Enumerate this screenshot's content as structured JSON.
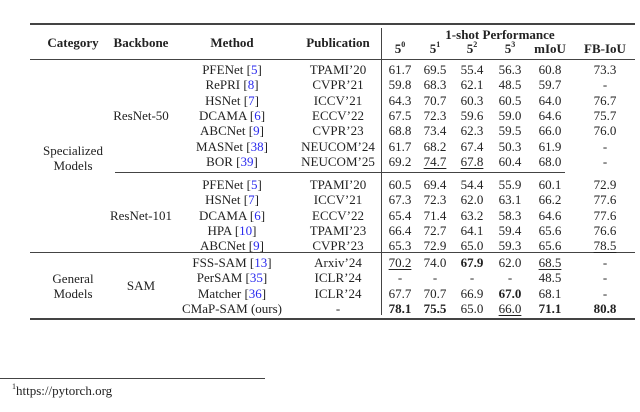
{
  "header": {
    "category": "Category",
    "backbone": "Backbone",
    "method": "Method",
    "publication": "Publication",
    "group": "1-shot Performance",
    "folds": [
      {
        "base": "5",
        "sup": "0"
      },
      {
        "base": "5",
        "sup": "1"
      },
      {
        "base": "5",
        "sup": "2"
      },
      {
        "base": "5",
        "sup": "3"
      }
    ],
    "miou": "mIoU",
    "fbiou": "FB-IoU"
  },
  "groups": [
    {
      "category": "Specialized Models",
      "backbones": [
        {
          "name": "ResNet-50",
          "rows": [
            {
              "method": "PFENet",
              "ref": "5",
              "pub": "TPAMI’20",
              "vals": [
                {
                  "v": "61.7"
                },
                {
                  "v": "69.5"
                },
                {
                  "v": "55.4"
                },
                {
                  "v": "56.3"
                },
                {
                  "v": "60.8"
                },
                {
                  "v": "73.3"
                }
              ]
            },
            {
              "method": "RePRI",
              "ref": "8",
              "pub": "CVPR’21",
              "vals": [
                {
                  "v": "59.8"
                },
                {
                  "v": "68.3"
                },
                {
                  "v": "62.1"
                },
                {
                  "v": "48.5"
                },
                {
                  "v": "59.7"
                },
                {
                  "v": "-"
                }
              ]
            },
            {
              "method": "HSNet",
              "ref": "7",
              "pub": "ICCV’21",
              "vals": [
                {
                  "v": "64.3"
                },
                {
                  "v": "70.7"
                },
                {
                  "v": "60.3"
                },
                {
                  "v": "60.5"
                },
                {
                  "v": "64.0"
                },
                {
                  "v": "76.7"
                }
              ]
            },
            {
              "method": "DCAMA",
              "ref": "6",
              "pub": "ECCV’22",
              "vals": [
                {
                  "v": "67.5"
                },
                {
                  "v": "72.3"
                },
                {
                  "v": "59.6"
                },
                {
                  "v": "59.0"
                },
                {
                  "v": "64.6"
                },
                {
                  "v": "75.7"
                }
              ]
            },
            {
              "method": "ABCNet",
              "ref": "9",
              "pub": "CVPR’23",
              "vals": [
                {
                  "v": "68.8"
                },
                {
                  "v": "73.4"
                },
                {
                  "v": "62.3"
                },
                {
                  "v": "59.5"
                },
                {
                  "v": "66.0"
                },
                {
                  "v": "76.0"
                }
              ]
            },
            {
              "method": "MASNet",
              "ref": "38",
              "pub": "NEUCOM’24",
              "vals": [
                {
                  "v": "61.7"
                },
                {
                  "v": "68.2"
                },
                {
                  "v": "67.4"
                },
                {
                  "v": "50.3"
                },
                {
                  "v": "61.9"
                },
                {
                  "v": "-"
                }
              ]
            },
            {
              "method": "BOR",
              "ref": "39",
              "pub": "NEUCOM’25",
              "vals": [
                {
                  "v": "69.2"
                },
                {
                  "v": "74.7",
                  "u": true
                },
                {
                  "v": "67.8",
                  "u": true
                },
                {
                  "v": "60.4"
                },
                {
                  "v": "68.0"
                },
                {
                  "v": "-"
                }
              ]
            }
          ]
        },
        {
          "name": "ResNet-101",
          "rows": [
            {
              "method": "PFENet",
              "ref": "5",
              "pub": "TPAMI’20",
              "vals": [
                {
                  "v": "60.5"
                },
                {
                  "v": "69.4"
                },
                {
                  "v": "54.4"
                },
                {
                  "v": "55.9"
                },
                {
                  "v": "60.1"
                },
                {
                  "v": "72.9"
                }
              ]
            },
            {
              "method": "HSNet",
              "ref": "7",
              "pub": "ICCV’21",
              "vals": [
                {
                  "v": "67.3"
                },
                {
                  "v": "72.3"
                },
                {
                  "v": "62.0"
                },
                {
                  "v": "63.1"
                },
                {
                  "v": "66.2"
                },
                {
                  "v": "77.6"
                }
              ]
            },
            {
              "method": "DCAMA",
              "ref": "6",
              "pub": "ECCV’22",
              "vals": [
                {
                  "v": "65.4"
                },
                {
                  "v": "71.4"
                },
                {
                  "v": "63.2"
                },
                {
                  "v": "58.3"
                },
                {
                  "v": "64.6"
                },
                {
                  "v": "77.6"
                }
              ]
            },
            {
              "method": "HPA",
              "ref": "10",
              "pub": "TPAMI’23",
              "vals": [
                {
                  "v": "66.4"
                },
                {
                  "v": "72.7"
                },
                {
                  "v": "64.1"
                },
                {
                  "v": "59.4"
                },
                {
                  "v": "65.6"
                },
                {
                  "v": "76.6"
                }
              ]
            },
            {
              "method": "ABCNet",
              "ref": "9",
              "pub": "CVPR’23",
              "vals": [
                {
                  "v": "65.3"
                },
                {
                  "v": "72.9"
                },
                {
                  "v": "65.0"
                },
                {
                  "v": "59.3"
                },
                {
                  "v": "65.6"
                },
                {
                  "v": "78.5",
                  "u": true
                }
              ]
            }
          ]
        }
      ]
    },
    {
      "category": "General Models",
      "backbones": [
        {
          "name": "SAM",
          "rows": [
            {
              "method": "FSS-SAM",
              "ref": "13",
              "pub": "Arxiv’24",
              "vals": [
                {
                  "v": "70.2",
                  "u": true
                },
                {
                  "v": "74.0"
                },
                {
                  "v": "67.9",
                  "b": true
                },
                {
                  "v": "62.0"
                },
                {
                  "v": "68.5",
                  "u": true
                },
                {
                  "v": "-"
                }
              ]
            },
            {
              "method": "PerSAM",
              "ref": "35",
              "pub": "ICLR’24",
              "vals": [
                {
                  "v": "-"
                },
                {
                  "v": "-"
                },
                {
                  "v": "-"
                },
                {
                  "v": "-"
                },
                {
                  "v": "48.5"
                },
                {
                  "v": "-"
                }
              ]
            },
            {
              "method": "Matcher",
              "ref": "36",
              "pub": "ICLR’24",
              "vals": [
                {
                  "v": "67.7"
                },
                {
                  "v": "70.7"
                },
                {
                  "v": "66.9"
                },
                {
                  "v": "67.0",
                  "b": true
                },
                {
                  "v": "68.1"
                },
                {
                  "v": "-"
                }
              ]
            },
            {
              "method": "CMaP-SAM (ours)",
              "ref": "",
              "pub": "-",
              "vals": [
                {
                  "v": "78.1",
                  "b": true
                },
                {
                  "v": "75.5",
                  "b": true
                },
                {
                  "v": "65.0"
                },
                {
                  "v": "66.0",
                  "u": true
                },
                {
                  "v": "71.1",
                  "b": true
                },
                {
                  "v": "80.8",
                  "b": true
                }
              ]
            }
          ]
        }
      ]
    }
  ],
  "footnote": {
    "mark": "1",
    "text": "https://pytorch.org"
  },
  "colors": {
    "citation": "#2a2aee",
    "rule": "#444444"
  }
}
